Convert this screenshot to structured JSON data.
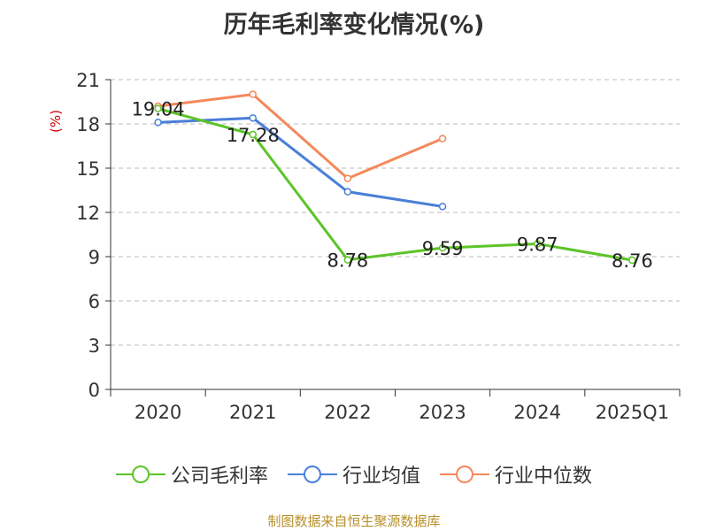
{
  "title": "历年毛利率变化情况(%)",
  "source": "制图数据来自恒生聚源数据库",
  "chart_data": {
    "type": "line",
    "categories": [
      "2020",
      "2021",
      "2022",
      "2023",
      "2024",
      "2025Q1"
    ],
    "yunit": "(%)",
    "ylim": [
      0,
      21
    ],
    "yticks": [
      0,
      3,
      6,
      9,
      12,
      15,
      18,
      21
    ],
    "grid": true,
    "legend_position": "bottom",
    "series": [
      {
        "name": "公司毛利率",
        "color": "#5cc428",
        "labeled": true,
        "values": [
          19.04,
          17.28,
          8.78,
          9.59,
          9.87,
          8.76
        ],
        "labels": [
          "19.04",
          "17.28",
          "8.78",
          "9.59",
          "9.87",
          "8.76"
        ]
      },
      {
        "name": "行业均值",
        "color": "#4a7fd8",
        "labeled": false,
        "values": [
          18.1,
          18.4,
          13.4,
          12.4,
          null,
          null
        ]
      },
      {
        "name": "行业中位数",
        "color": "#f5885a",
        "labeled": false,
        "values": [
          19.2,
          20.0,
          14.3,
          17.0,
          null,
          null
        ]
      }
    ]
  }
}
